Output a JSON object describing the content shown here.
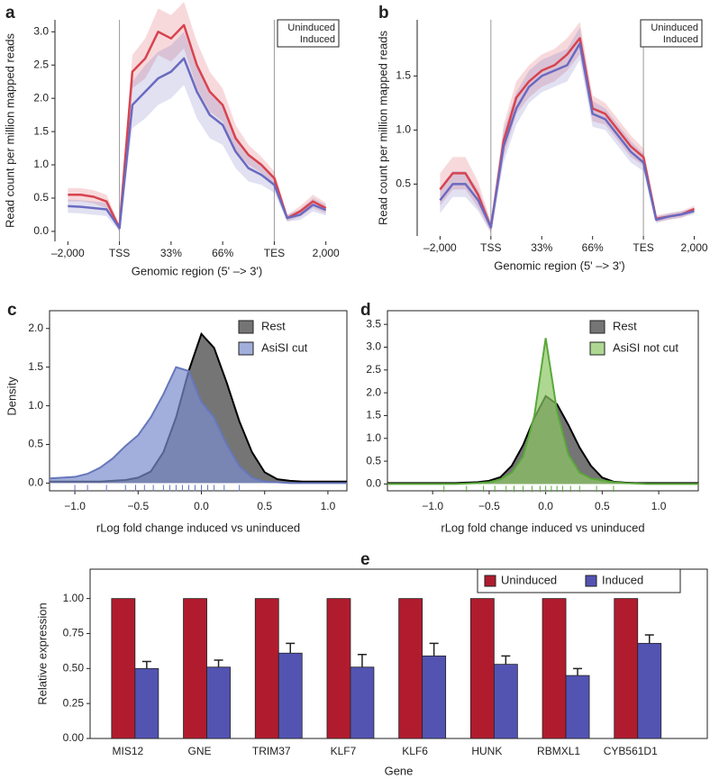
{
  "chart_data": [
    {
      "type": "line",
      "panel": "a",
      "ylabel": "Read count per million mapped reads",
      "xlabel": "Genomic region (5' –> 3')",
      "x": [
        0,
        0.25,
        0.5,
        0.75,
        1,
        1.25,
        1.5,
        1.75,
        2,
        2.25,
        2.5,
        2.75,
        3,
        3.25,
        3.5,
        3.75,
        4,
        4.25,
        4.5,
        4.75,
        5
      ],
      "xlim": [
        -0.25,
        5.25
      ],
      "xticks": [
        {
          "value": 0,
          "label": "–2,000"
        },
        {
          "value": 1,
          "label": "TSS"
        },
        {
          "value": 2,
          "label": "33%"
        },
        {
          "value": 3,
          "label": "66%"
        },
        {
          "value": 4,
          "label": "TES"
        },
        {
          "value": 5,
          "label": "2,000"
        }
      ],
      "reference_lines": [
        1,
        4
      ],
      "ylim": [
        -0.15,
        3.18
      ],
      "yticks": [
        {
          "value": 0,
          "label": "0.0"
        },
        0.5,
        {
          "value": 1,
          "label": "1.0"
        },
        1.5,
        {
          "value": 2,
          "label": "2.0"
        },
        2.5,
        {
          "value": 3,
          "label": "3.0"
        }
      ],
      "legend": "upper right",
      "series": [
        {
          "name": "Uninduced",
          "color": "#d8434e",
          "values": [
            0.55,
            0.55,
            0.52,
            0.45,
            0.05,
            2.4,
            2.6,
            3.0,
            2.9,
            3.1,
            2.5,
            2.1,
            1.9,
            1.4,
            1.15,
            1.0,
            0.8,
            0.2,
            0.3,
            0.45,
            0.35
          ],
          "error": [
            0.1,
            0.1,
            0.1,
            0.1,
            0.05,
            0.25,
            0.3,
            0.35,
            0.35,
            0.35,
            0.35,
            0.3,
            0.25,
            0.2,
            0.15,
            0.12,
            0.1,
            0.05,
            0.08,
            0.1,
            0.08
          ]
        },
        {
          "name": "Induced",
          "color": "#6a6ac0",
          "values": [
            0.38,
            0.37,
            0.35,
            0.33,
            0.05,
            1.9,
            2.1,
            2.3,
            2.4,
            2.6,
            2.1,
            1.75,
            1.6,
            1.2,
            0.95,
            0.85,
            0.7,
            0.2,
            0.25,
            0.4,
            0.32
          ],
          "error": [
            0.1,
            0.1,
            0.1,
            0.1,
            0.05,
            0.35,
            0.4,
            0.4,
            0.4,
            0.4,
            0.4,
            0.35,
            0.3,
            0.25,
            0.2,
            0.15,
            0.12,
            0.05,
            0.08,
            0.1,
            0.08
          ]
        }
      ]
    },
    {
      "type": "line",
      "panel": "b",
      "ylabel": "Read count per million mapped reads",
      "xlabel": "Genomic region (5' –> 3')",
      "x": [
        0,
        0.25,
        0.5,
        0.75,
        1,
        1.25,
        1.5,
        1.75,
        2,
        2.25,
        2.5,
        2.75,
        3,
        3.25,
        3.5,
        3.75,
        4,
        4.25,
        4.5,
        4.75,
        5
      ],
      "xlim": [
        -0.45,
        5.15
      ],
      "xticks": [
        {
          "value": 0,
          "label": "–2,000"
        },
        {
          "value": 1,
          "label": "TSS"
        },
        {
          "value": 2,
          "label": "33%"
        },
        {
          "value": 3,
          "label": "66%"
        },
        {
          "value": 4,
          "label": "TES"
        },
        {
          "value": 5,
          "label": "2,000"
        }
      ],
      "reference_lines": [
        1,
        4
      ],
      "ylim": [
        0.02,
        2.02
      ],
      "yticks": [
        0.5,
        {
          "value": 1,
          "label": "1.0"
        },
        1.5
      ],
      "legend": "upper right",
      "series": [
        {
          "name": "Uninduced",
          "color": "#d8434e",
          "values": [
            0.45,
            0.6,
            0.6,
            0.4,
            0.1,
            0.9,
            1.3,
            1.45,
            1.55,
            1.6,
            1.7,
            1.85,
            1.2,
            1.15,
            1.0,
            0.85,
            0.75,
            0.18,
            0.2,
            0.22,
            0.27
          ],
          "error": [
            0.15,
            0.15,
            0.15,
            0.12,
            0.05,
            0.15,
            0.15,
            0.15,
            0.15,
            0.15,
            0.15,
            0.15,
            0.12,
            0.1,
            0.1,
            0.1,
            0.08,
            0.03,
            0.03,
            0.03,
            0.03
          ]
        },
        {
          "name": "Induced",
          "color": "#6a6ac0",
          "values": [
            0.35,
            0.5,
            0.5,
            0.35,
            0.1,
            0.85,
            1.2,
            1.4,
            1.5,
            1.55,
            1.6,
            1.8,
            1.15,
            1.1,
            0.95,
            0.8,
            0.7,
            0.17,
            0.2,
            0.22,
            0.25
          ],
          "error": [
            0.12,
            0.12,
            0.12,
            0.1,
            0.05,
            0.15,
            0.15,
            0.15,
            0.15,
            0.15,
            0.15,
            0.15,
            0.12,
            0.1,
            0.1,
            0.1,
            0.08,
            0.03,
            0.03,
            0.03,
            0.03
          ]
        }
      ]
    },
    {
      "type": "area",
      "panel": "c",
      "ylabel": "Density",
      "xlabel": "rLog fold change induced vs uninduced",
      "x": [
        -1.2,
        -1.0,
        -0.9,
        -0.8,
        -0.7,
        -0.6,
        -0.5,
        -0.4,
        -0.3,
        -0.2,
        -0.1,
        0.0,
        0.1,
        0.2,
        0.3,
        0.4,
        0.5,
        0.6,
        0.7,
        0.8,
        0.9,
        1.0,
        1.15
      ],
      "xlim": [
        -1.2,
        1.15
      ],
      "xticks": [
        {
          "value": -1,
          "label": "−1.0"
        },
        {
          "value": -0.5,
          "label": "−0.5"
        },
        {
          "value": 0,
          "label": "0.0"
        },
        0.5,
        {
          "value": 1,
          "label": "1.0"
        }
      ],
      "ylim": [
        -0.1,
        2.23
      ],
      "yticks": [
        {
          "value": 0,
          "label": "0.0"
        },
        0.5,
        {
          "value": 1,
          "label": "1.0"
        },
        1.5,
        {
          "value": 2,
          "label": "2.0"
        }
      ],
      "legend": "upper right",
      "series": [
        {
          "name": "Rest",
          "color": "#6e6e6e",
          "edge_color": "#000000",
          "values": [
            0.02,
            0.02,
            0.02,
            0.02,
            0.03,
            0.04,
            0.07,
            0.15,
            0.4,
            0.85,
            1.45,
            1.93,
            1.75,
            1.3,
            0.8,
            0.4,
            0.14,
            0.05,
            0.03,
            0.02,
            0.02,
            0.02,
            0.02
          ]
        },
        {
          "name": "AsiSI cut",
          "color": "#7b8ccc",
          "edge_color": "#6677bb",
          "values": [
            0.06,
            0.08,
            0.12,
            0.2,
            0.32,
            0.48,
            0.62,
            0.85,
            1.15,
            1.5,
            1.45,
            1.05,
            0.85,
            0.5,
            0.22,
            0.07,
            0.02,
            0.01,
            0,
            0,
            0,
            0,
            0
          ],
          "rug": [
            -1.0,
            -0.9,
            -0.75,
            -0.6,
            -0.52,
            -0.45,
            -0.38,
            -0.3,
            -0.25,
            -0.2,
            -0.15,
            -0.1,
            -0.05,
            0.0,
            0.05,
            0.1,
            0.18,
            0.3
          ]
        }
      ]
    },
    {
      "type": "area",
      "panel": "d",
      "xlabel": "rLog fold change induced vs uninduced",
      "x": [
        -1.4,
        -1.0,
        -0.9,
        -0.8,
        -0.7,
        -0.6,
        -0.5,
        -0.4,
        -0.3,
        -0.2,
        -0.1,
        0.0,
        0.1,
        0.2,
        0.3,
        0.4,
        0.5,
        0.6,
        0.7,
        0.8,
        0.9,
        1.0,
        1.35
      ],
      "xlim": [
        -1.4,
        1.35
      ],
      "xticks": [
        {
          "value": -1,
          "label": "−1.0"
        },
        {
          "value": -0.5,
          "label": "−0.5"
        },
        {
          "value": 0,
          "label": "0.0"
        },
        0.5,
        {
          "value": 1,
          "label": "1.0"
        }
      ],
      "ylim": [
        -0.15,
        3.8
      ],
      "yticks": [
        {
          "value": 0,
          "label": "0.0"
        },
        0.5,
        {
          "value": 1,
          "label": "1.0"
        },
        1.5,
        {
          "value": 2,
          "label": "2.0"
        },
        2.5,
        {
          "value": 3,
          "label": "3.0"
        },
        3.5
      ],
      "legend": "upper right",
      "series": [
        {
          "name": "Rest",
          "color": "#6e6e6e",
          "edge_color": "#000000",
          "values": [
            0.02,
            0.02,
            0.02,
            0.02,
            0.03,
            0.04,
            0.07,
            0.15,
            0.4,
            0.85,
            1.45,
            1.93,
            1.75,
            1.3,
            0.8,
            0.4,
            0.14,
            0.05,
            0.03,
            0.02,
            0.02,
            0.02,
            0.02
          ]
        },
        {
          "name": "AsiSI not cut",
          "color": "#8cc864",
          "edge_color": "#5aa83a",
          "values": [
            0,
            0,
            0,
            0,
            0.01,
            0.02,
            0.04,
            0.1,
            0.25,
            0.6,
            1.5,
            3.2,
            1.6,
            0.65,
            0.25,
            0.12,
            0.08,
            0.04,
            0.02,
            0.01,
            0,
            0,
            0
          ],
          "rug": [
            -0.9,
            -0.7,
            -0.55,
            -0.45,
            -0.35,
            -0.28,
            -0.2,
            -0.12,
            -0.05,
            0.0,
            0.05,
            0.1,
            0.15,
            0.22,
            0.3,
            0.45,
            0.6
          ]
        }
      ]
    },
    {
      "type": "bar",
      "panel": "e",
      "ylabel": "Relative expression",
      "xlabel": "Gene",
      "categories": [
        "MIS12",
        "GNE",
        "TRIM37",
        "KLF7",
        "KLF6",
        "HUNK",
        "RBMXL1",
        "CYB561D1"
      ],
      "ylim": [
        0,
        1.21
      ],
      "yticks": [
        {
          "value": 0,
          "label": "0.00"
        },
        {
          "value": 0.25,
          "label": "0.25"
        },
        {
          "value": 0.5,
          "label": "0.50"
        },
        {
          "value": 0.75,
          "label": "0.75"
        },
        {
          "value": 1,
          "label": "1.00"
        }
      ],
      "legend": "upper right",
      "series": [
        {
          "name": "Uninduced",
          "color": "#b01c2e",
          "values": [
            1,
            1,
            1,
            1,
            1,
            1,
            1,
            1
          ]
        },
        {
          "name": "Induced",
          "color": "#5353b2",
          "values": [
            0.5,
            0.51,
            0.61,
            0.51,
            0.59,
            0.53,
            0.45,
            0.68
          ],
          "error": [
            0.05,
            0.05,
            0.07,
            0.09,
            0.09,
            0.06,
            0.05,
            0.06
          ]
        }
      ]
    }
  ]
}
